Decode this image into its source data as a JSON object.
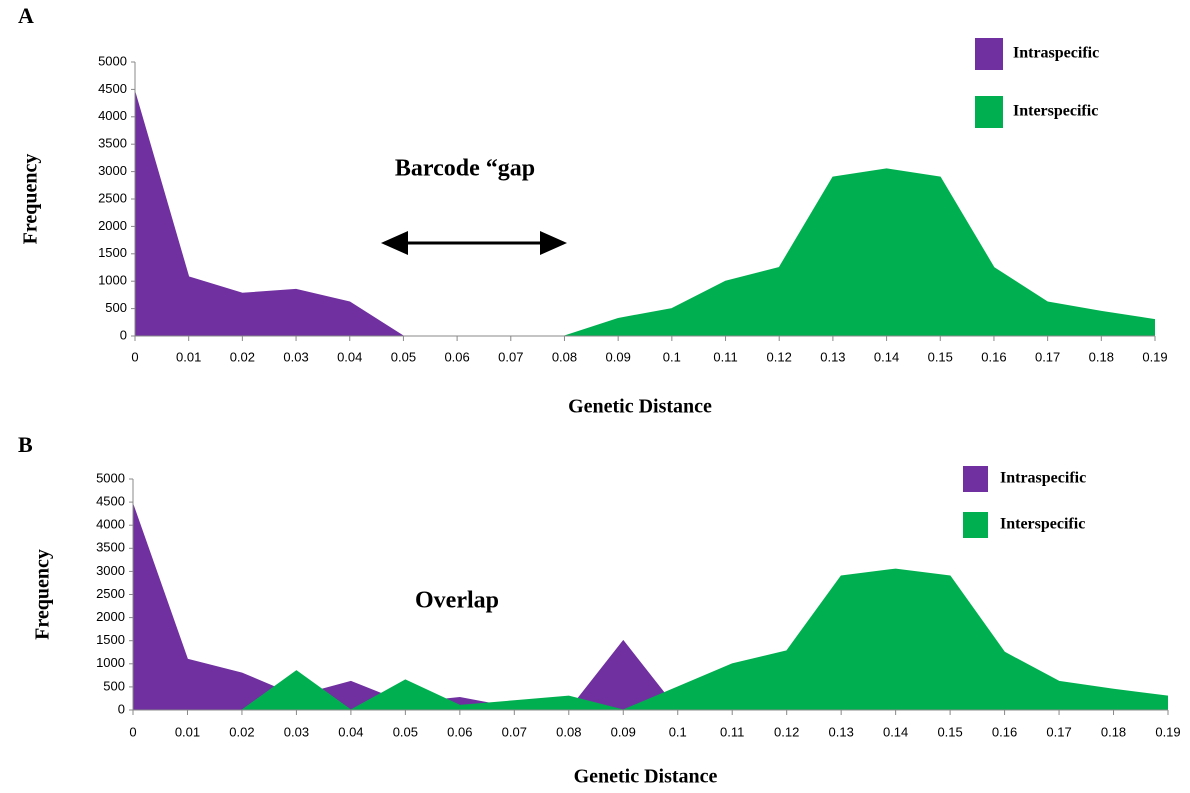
{
  "chart_data": [
    {
      "type": "area",
      "panel_label": "A",
      "annotation": "Barcode “gap",
      "x_label": "Genetic Distance",
      "y_label": "Frequency",
      "categories": [
        "0",
        "0.01",
        "0.02",
        "0.03",
        "0.04",
        "0.05",
        "0.06",
        "0.07",
        "0.08",
        "0.09",
        "0.1",
        "0.11",
        "0.12",
        "0.13",
        "0.14",
        "0.15",
        "0.16",
        "0.17",
        "0.18",
        "0.19"
      ],
      "series": [
        {
          "name": "Intraspecific",
          "color": "#7030a0",
          "values": [
            4450,
            1080,
            780,
            850,
            620,
            0,
            null,
            null,
            null,
            null,
            null,
            null,
            null,
            null,
            null,
            null,
            null,
            null,
            null,
            null
          ]
        },
        {
          "name": "Interspecific",
          "color": "#00b050",
          "values": [
            null,
            null,
            null,
            null,
            null,
            null,
            null,
            null,
            0,
            320,
            500,
            1000,
            1250,
            2900,
            3050,
            2900,
            1250,
            620,
            450,
            300
          ]
        }
      ],
      "ylim": [
        0,
        5000
      ],
      "yticks": [
        0,
        500,
        1000,
        1500,
        2000,
        2500,
        3000,
        3500,
        4000,
        4500,
        5000
      ],
      "legend": "top-right"
    },
    {
      "type": "area",
      "panel_label": "B",
      "annotation": "Overlap",
      "x_label": "Genetic Distance",
      "y_label": "Frequency",
      "categories": [
        "0",
        "0.01",
        "0.02",
        "0.03",
        "0.04",
        "0.05",
        "0.06",
        "0.07",
        "0.08",
        "0.09",
        "0.1",
        "0.11",
        "0.12",
        "0.13",
        "0.14",
        "0.15",
        "0.16",
        "0.17",
        "0.18",
        "0.19"
      ],
      "series": [
        {
          "name": "Intraspecific",
          "color": "#7030a0",
          "values": [
            4450,
            1100,
            800,
            300,
            620,
            150,
            270,
            50,
            0,
            1500,
            0,
            null,
            null,
            null,
            null,
            null,
            null,
            null,
            null,
            null
          ]
        },
        {
          "name": "Interspecific",
          "color": "#00b050",
          "values": [
            null,
            null,
            0,
            850,
            0,
            650,
            100,
            200,
            300,
            0,
            500,
            1000,
            1280,
            2900,
            3050,
            2900,
            1250,
            620,
            450,
            300
          ]
        }
      ],
      "ylim": [
        0,
        5000
      ],
      "yticks": [
        0,
        500,
        1000,
        1500,
        2000,
        2500,
        3000,
        3500,
        4000,
        4500,
        5000
      ],
      "legend": "top-right"
    }
  ]
}
